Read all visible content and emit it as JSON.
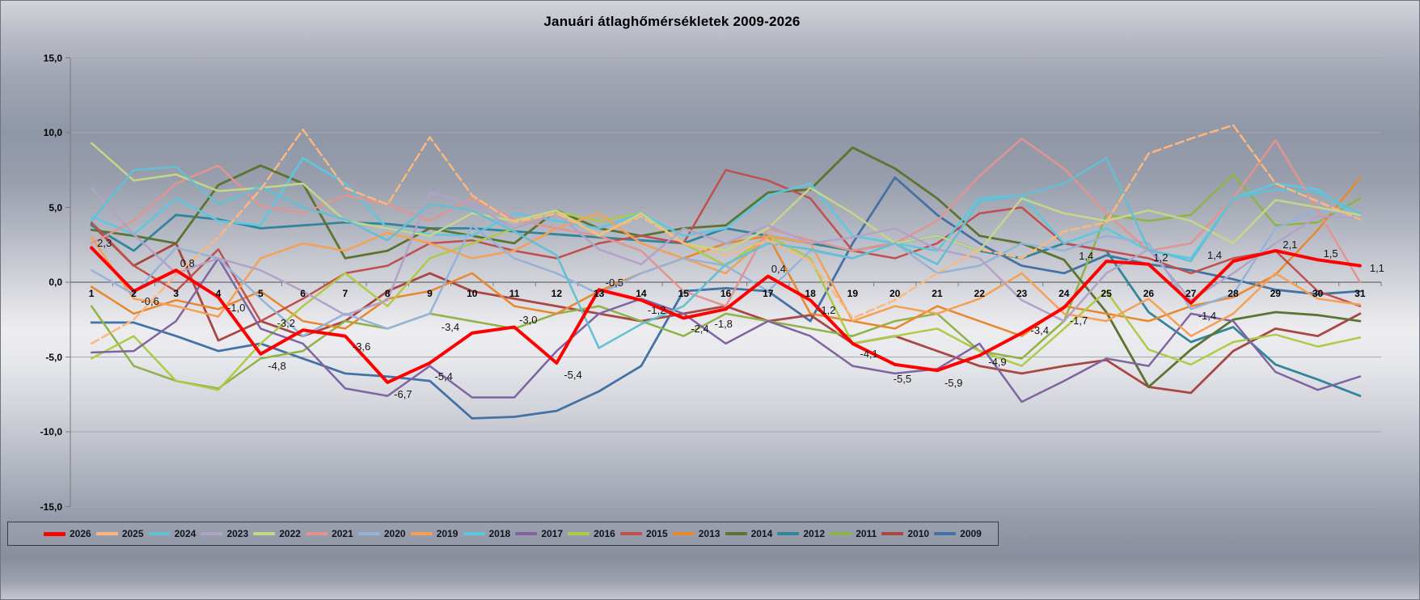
{
  "title": "Januári átlaghőmérsékletek 2009-2026",
  "y_axis": {
    "tick_labels": [
      "15,0",
      "10,0",
      "5,0",
      "0,0",
      "-5,0",
      "-10,0",
      "-15,0"
    ],
    "tick_values": [
      15,
      10,
      5,
      0,
      -5,
      -10,
      -15
    ]
  },
  "x_axis": {
    "tick_labels": [
      "1",
      "2",
      "3",
      "4",
      "5",
      "6",
      "7",
      "8",
      "9",
      "10",
      "11",
      "12",
      "13",
      "14",
      "15",
      "16",
      "17",
      "18",
      "19",
      "20",
      "21",
      "22",
      "23",
      "24",
      "25",
      "26",
      "27",
      "28",
      "29",
      "30",
      "31"
    ]
  },
  "colors": {
    "grid": "#a8a8ac",
    "axis": "#7a7a7e",
    "label_text": "#151515"
  },
  "chart_data": {
    "type": "line",
    "title": "Januári átlaghőmérsékletek 2009-2026",
    "xlabel": "",
    "ylabel": "",
    "ylim": [
      -15,
      15
    ],
    "x": [
      1,
      2,
      3,
      4,
      5,
      6,
      7,
      8,
      9,
      10,
      11,
      12,
      13,
      14,
      15,
      16,
      17,
      18,
      19,
      20,
      21,
      22,
      23,
      24,
      25,
      26,
      27,
      28,
      29,
      30,
      31
    ],
    "grid": true,
    "legend_position": "bottom",
    "series": [
      {
        "name": "2026",
        "color": "#ff0000",
        "width": 4,
        "dash": "",
        "values": [
          2.3,
          -0.6,
          0.8,
          -1.0,
          -4.8,
          -3.2,
          -3.6,
          -6.7,
          -5.4,
          -3.4,
          -3.0,
          -5.4,
          -0.5,
          -1.2,
          -2.4,
          -1.8,
          0.4,
          -1.2,
          -4.1,
          -5.5,
          -5.9,
          -4.9,
          -3.4,
          -1.7,
          1.4,
          1.2,
          -1.4,
          1.4,
          2.1,
          1.5,
          1.1
        ],
        "point_labels": [
          "2,3",
          "-0,6",
          "0,8",
          "-1,0",
          "-4,8",
          "-3,2",
          "-3,6",
          "-6,7",
          "-5,4",
          "-3,4",
          "-3,0",
          "-5,4",
          "-0,5",
          "-1,2",
          "-2,4",
          "-1,8",
          "0,4",
          "-1,2",
          "-4,1",
          "-5,5",
          "-5,9",
          "-4,9",
          "-3,4",
          "-1,7",
          "1,4",
          "1,2",
          "-1,4",
          "1,4",
          "2,1",
          "1,5",
          "1,1"
        ],
        "label_offsets": [
          [
            7,
            -5
          ],
          [
            9,
            13
          ],
          [
            5,
            -8
          ],
          [
            11,
            13
          ],
          [
            9,
            15
          ],
          [
            -32,
            -8
          ],
          [
            9,
            13
          ],
          [
            8,
            15
          ],
          [
            6,
            17
          ],
          [
            -38,
            -7
          ],
          [
            6,
            -9
          ],
          [
            9,
            15
          ],
          [
            8,
            -8
          ],
          [
            8,
            13
          ],
          [
            9,
            14
          ],
          [
            -14,
            19
          ],
          [
            4,
            -9
          ],
          [
            9,
            13
          ],
          [
            9,
            13
          ],
          [
            -2,
            18
          ],
          [
            9,
            16
          ],
          [
            11,
            8
          ],
          [
            11,
            -3
          ],
          [
            7,
            17
          ],
          [
            -34,
            -6
          ],
          [
            6,
            -8
          ],
          [
            9,
            16
          ],
          [
            -32,
            -7
          ],
          [
            9,
            -7
          ],
          [
            7,
            -7
          ],
          [
            12,
            3
          ]
        ]
      },
      {
        "name": "2025",
        "color": "#fbb77e",
        "width": 2.5,
        "dash": "10 5",
        "values": [
          -4.1,
          -2.5,
          0.5,
          3.0,
          6.2,
          10.2,
          6.3,
          5.2,
          9.7,
          5.8,
          4.0,
          4.6,
          3.2,
          4.4,
          2.6,
          1.8,
          2.8,
          1.4,
          -2.4,
          -1.2,
          0.6,
          2.2,
          1.6,
          3.4,
          4.0,
          8.6,
          9.6,
          10.5,
          6.6,
          5.4,
          4.2
        ]
      },
      {
        "name": "2024",
        "color": "#63bfd3",
        "width": 2.5,
        "dash": "",
        "values": [
          4.1,
          7.5,
          7.7,
          5.2,
          6.4,
          5.0,
          4.2,
          2.8,
          5.2,
          4.8,
          3.4,
          1.8,
          -4.4,
          -2.8,
          -1.6,
          1.2,
          2.6,
          2.2,
          1.6,
          2.6,
          1.2,
          5.4,
          5.8,
          6.6,
          8.3,
          2.2,
          1.4,
          5.6,
          6.2,
          6.0,
          4.6
        ]
      },
      {
        "name": "2023",
        "color": "#b3a2c7",
        "width": 2.5,
        "dash": "",
        "values": [
          6.3,
          3.2,
          0.6,
          1.6,
          0.8,
          -0.6,
          -2.2,
          -1.2,
          6.0,
          5.2,
          3.6,
          4.6,
          2.2,
          1.2,
          3.6,
          2.6,
          3.8,
          2.6,
          3.0,
          3.6,
          2.2,
          1.6,
          -1.2,
          -2.6,
          0.6,
          2.2,
          -1.2,
          0.6,
          2.6,
          4.4,
          4.3
        ]
      },
      {
        "name": "2022",
        "color": "#c5d689",
        "width": 2.5,
        "dash": "",
        "values": [
          9.3,
          6.8,
          7.2,
          6.1,
          6.3,
          6.6,
          4.1,
          3.6,
          3.1,
          4.6,
          4.1,
          4.8,
          3.1,
          4.6,
          2.6,
          2.1,
          3.6,
          6.3,
          4.6,
          2.6,
          3.1,
          2.1,
          5.6,
          4.6,
          4.1,
          4.8,
          4.1,
          2.6,
          5.5,
          5.0,
          4.5
        ]
      },
      {
        "name": "2021",
        "color": "#e29490",
        "width": 2.5,
        "dash": "",
        "values": [
          2.6,
          4.1,
          6.6,
          7.8,
          5.1,
          4.6,
          5.8,
          5.2,
          4.1,
          5.6,
          4.2,
          3.6,
          3.1,
          2.1,
          -0.6,
          -1.6,
          3.6,
          2.8,
          2.1,
          2.6,
          4.1,
          7.1,
          9.6,
          7.6,
          4.6,
          2.1,
          2.6,
          5.6,
          9.5,
          4.8,
          0.0
        ]
      },
      {
        "name": "2020",
        "color": "#95b3d7",
        "width": 2.5,
        "dash": "",
        "values": [
          0.8,
          -0.8,
          2.3,
          1.6,
          -1.1,
          -3.6,
          -2.1,
          -3.1,
          -2.1,
          3.8,
          1.6,
          0.6,
          -0.8,
          0.6,
          1.6,
          1.1,
          -0.6,
          2.1,
          1.6,
          2.6,
          0.6,
          1.1,
          2.6,
          2.1,
          3.1,
          2.6,
          -1.8,
          -0.8,
          3.6,
          4.8,
          4.5
        ]
      },
      {
        "name": "2019",
        "color": "#f5a054",
        "width": 2.5,
        "dash": "",
        "values": [
          3.0,
          -1.1,
          -1.6,
          -2.3,
          1.6,
          2.6,
          2.1,
          3.3,
          2.6,
          1.6,
          2.1,
          3.6,
          4.6,
          2.6,
          1.6,
          0.6,
          3.1,
          2.6,
          -2.6,
          -1.6,
          -2.1,
          -1.1,
          0.6,
          -2.1,
          -2.6,
          -1.1,
          -3.6,
          -2.1,
          0.6,
          -1.1,
          -1.5
        ]
      },
      {
        "name": "2018",
        "color": "#5bc8e0",
        "width": 2.5,
        "dash": "",
        "values": [
          4.4,
          3.2,
          5.6,
          4.1,
          3.8,
          8.3,
          6.6,
          3.6,
          3.2,
          3.1,
          4.6,
          4.1,
          3.6,
          4.6,
          3.1,
          3.6,
          5.8,
          6.6,
          3.1,
          2.6,
          2.1,
          5.6,
          5.8,
          2.6,
          3.6,
          2.1,
          1.6,
          5.6,
          6.6,
          6.2,
          4.2
        ]
      },
      {
        "name": "2017",
        "color": "#8064a2",
        "width": 2.5,
        "dash": "",
        "values": [
          -4.7,
          -4.6,
          -2.6,
          1.6,
          -3.1,
          -4.1,
          -7.1,
          -7.6,
          -5.6,
          -7.7,
          -7.7,
          -4.6,
          -2.1,
          -1.1,
          -2.1,
          -4.1,
          -2.6,
          -3.6,
          -5.6,
          -6.1,
          -5.8,
          -4.1,
          -8.0,
          -6.6,
          -5.1,
          -5.6,
          -2.1,
          -2.6,
          -6.0,
          -7.2,
          -6.3
        ]
      },
      {
        "name": "2016",
        "color": "#afca46",
        "width": 2.5,
        "dash": "",
        "values": [
          -5.1,
          -3.6,
          -6.6,
          -7.2,
          -4.1,
          -1.6,
          0.6,
          -1.6,
          1.6,
          2.6,
          3.6,
          4.7,
          4.1,
          4.6,
          2.6,
          1.1,
          3.1,
          1.6,
          -4.1,
          -3.6,
          -3.1,
          -4.6,
          -5.6,
          -3.1,
          -0.6,
          -4.5,
          -5.5,
          -4.0,
          -3.5,
          -4.3,
          -3.7
        ]
      },
      {
        "name": "2015",
        "color": "#c0504d",
        "width": 2.5,
        "dash": "",
        "values": [
          4.0,
          1.1,
          -0.6,
          2.2,
          -2.6,
          -1.1,
          0.6,
          1.1,
          2.6,
          2.8,
          2.1,
          1.6,
          2.6,
          3.1,
          2.6,
          7.5,
          6.8,
          5.6,
          2.1,
          1.6,
          2.6,
          4.6,
          5.0,
          2.6,
          2.1,
          1.6,
          0.6,
          1.6,
          2.1,
          -0.6,
          -1.6
        ]
      },
      {
        "name": "2013",
        "color": "#e8882d",
        "width": 2.5,
        "dash": "",
        "values": [
          -0.3,
          -2.1,
          -1.2,
          -1.8,
          -0.6,
          -2.6,
          -3.1,
          -1.1,
          -0.6,
          0.6,
          -1.6,
          -2.1,
          -0.6,
          0.6,
          1.6,
          2.6,
          3.1,
          -2.1,
          -2.6,
          -3.1,
          -1.6,
          -2.6,
          -3.6,
          -1.6,
          -2.1,
          -2.6,
          -1.6,
          -1.0,
          0.5,
          3.5,
          7.0
        ]
      },
      {
        "name": "2014",
        "color": "#5d7331",
        "width": 2.8,
        "dash": "",
        "values": [
          3.5,
          3.1,
          2.6,
          6.5,
          7.8,
          6.6,
          1.6,
          2.1,
          3.6,
          3.1,
          2.6,
          4.8,
          3.6,
          3.1,
          3.6,
          3.8,
          6.0,
          6.2,
          9.0,
          7.6,
          5.6,
          3.1,
          2.6,
          1.5,
          -2.0,
          -7.0,
          -4.5,
          -2.5,
          -2.0,
          -2.2,
          -2.6
        ]
      },
      {
        "name": "2012",
        "color": "#31859c",
        "width": 2.8,
        "dash": "",
        "values": [
          3.8,
          2.1,
          4.5,
          4.2,
          3.6,
          3.8,
          4.0,
          3.9,
          3.6,
          3.6,
          3.4,
          3.2,
          3.0,
          2.8,
          2.6,
          3.6,
          3.1,
          2.6,
          2.1,
          2.6,
          3.1,
          2.1,
          1.6,
          2.6,
          2.1,
          -2.0,
          -4.0,
          -3.0,
          -5.5,
          -6.5,
          -7.6
        ]
      },
      {
        "name": "2011",
        "color": "#8fb347",
        "width": 2.5,
        "dash": "",
        "values": [
          -1.6,
          -5.6,
          -6.6,
          -7.1,
          -5.1,
          -4.6,
          -2.6,
          -3.1,
          -2.1,
          -2.6,
          -3.1,
          -2.1,
          -1.6,
          -2.6,
          -3.6,
          -2.1,
          -2.6,
          -3.1,
          -3.6,
          -2.6,
          -2.1,
          -4.6,
          -5.1,
          -2.6,
          4.5,
          4.1,
          4.5,
          7.2,
          3.8,
          4.0,
          5.6
        ]
      },
      {
        "name": "2010",
        "color": "#a94744",
        "width": 2.8,
        "dash": "",
        "values": [
          3.9,
          1.1,
          2.6,
          -3.9,
          -2.6,
          -3.6,
          -2.6,
          -0.6,
          0.6,
          -0.6,
          -1.1,
          -1.6,
          -2.1,
          -2.6,
          -2.1,
          -1.6,
          -2.6,
          -2.2,
          -4.1,
          -3.6,
          -4.6,
          -5.6,
          -6.1,
          -5.6,
          -5.2,
          -7.0,
          -7.4,
          -4.6,
          -3.1,
          -3.6,
          -2.1
        ]
      },
      {
        "name": "2009",
        "color": "#4472a4",
        "width": 2.8,
        "dash": "",
        "values": [
          -2.7,
          -2.7,
          -3.6,
          -4.6,
          -4.1,
          -5.1,
          -6.1,
          -6.3,
          -6.6,
          -9.1,
          -9.0,
          -8.6,
          -7.3,
          -5.6,
          -0.6,
          -0.4,
          -0.6,
          -2.6,
          2.6,
          7.0,
          4.5,
          2.6,
          1.1,
          0.6,
          1.8,
          1.2,
          0.8,
          0.2,
          -0.5,
          -0.8,
          -0.6
        ]
      }
    ]
  },
  "legend_order": [
    "2026",
    "2025",
    "2024",
    "2023",
    "2022",
    "2021",
    "2020",
    "2019",
    "2018",
    "2017",
    "2016",
    "2015",
    "2013",
    "2014",
    "2012",
    "2011",
    "2010",
    "2009"
  ]
}
